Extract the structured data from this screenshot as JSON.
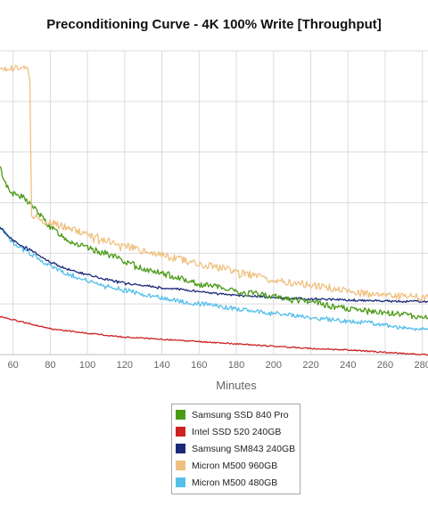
{
  "chart_data": {
    "type": "line",
    "title": "Preconditioning Curve - 4K 100% Write [Throughput]",
    "xlabel": "Minutes",
    "ylabel": "",
    "xlim": [
      53,
      283
    ],
    "ylim": [
      0,
      400
    ],
    "x_ticks": [
      60,
      80,
      100,
      120,
      140,
      160,
      180,
      200,
      220,
      240,
      260,
      280
    ],
    "grid": true,
    "legend_position": "bottom-center",
    "series": [
      {
        "name": "Samsung SSD 840 Pro",
        "color": "#4a9a16",
        "x": [
          53,
          56,
          60,
          65,
          70,
          80,
          90,
          100,
          110,
          120,
          130,
          140,
          150,
          160,
          170,
          180,
          190,
          200,
          210,
          220,
          230,
          240,
          250,
          260,
          270,
          280,
          283
        ],
        "y": [
          246,
          225,
          212,
          208,
          197,
          168,
          150,
          140,
          133,
          123,
          113,
          107,
          101,
          93,
          89,
          82,
          80,
          77,
          72,
          70,
          64,
          60,
          57,
          55,
          53,
          49,
          48
        ]
      },
      {
        "name": "Intel SSD 520 240GB",
        "color": "#cc2222",
        "x": [
          53,
          60,
          70,
          80,
          90,
          100,
          120,
          140,
          160,
          180,
          200,
          220,
          240,
          260,
          280,
          283
        ],
        "y": [
          50,
          46,
          40,
          34,
          31,
          28,
          23,
          20,
          17,
          14,
          11,
          8,
          6,
          3,
          0,
          0
        ]
      },
      {
        "name": "Samsung SM843 240GB",
        "color": "#1b2a7a",
        "x": [
          53,
          60,
          70,
          80,
          90,
          100,
          110,
          120,
          130,
          140,
          150,
          160,
          170,
          180,
          190,
          200,
          210,
          220,
          230,
          240,
          250,
          260,
          270,
          280,
          283
        ],
        "y": [
          168,
          150,
          137,
          122,
          112,
          105,
          99,
          94,
          91,
          88,
          86,
          83,
          80,
          78,
          77,
          75,
          74,
          73,
          73,
          72,
          71,
          71,
          70,
          70,
          70
        ]
      },
      {
        "name": "Micron M500 960GB",
        "color": "#f0c080",
        "x": [
          53,
          58,
          62,
          67,
          69,
          70,
          72,
          80,
          90,
          100,
          110,
          120,
          130,
          140,
          150,
          160,
          170,
          180,
          190,
          200,
          210,
          220,
          230,
          240,
          250,
          260,
          270,
          280,
          283
        ],
        "y": [
          378,
          377,
          376,
          378,
          365,
          180,
          180,
          173,
          166,
          158,
          151,
          143,
          137,
          130,
          126,
          118,
          115,
          109,
          104,
          98,
          95,
          92,
          88,
          84,
          80,
          79,
          76,
          75,
          75
        ]
      },
      {
        "name": "Micron M500 480GB",
        "color": "#55bfea",
        "x": [
          53,
          60,
          70,
          80,
          90,
          100,
          110,
          120,
          130,
          140,
          150,
          160,
          170,
          180,
          190,
          200,
          210,
          220,
          230,
          240,
          250,
          260,
          270,
          280,
          283
        ],
        "y": [
          168,
          148,
          132,
          116,
          106,
          97,
          91,
          85,
          79,
          75,
          70,
          67,
          64,
          60,
          57,
          55,
          52,
          49,
          46,
          44,
          42,
          39,
          36,
          34,
          34
        ]
      }
    ]
  }
}
